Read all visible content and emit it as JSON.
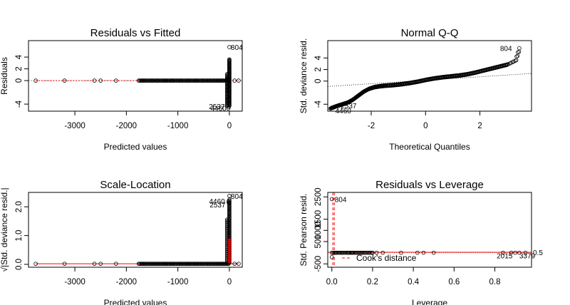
{
  "chart_data": [
    {
      "type": "scatter",
      "title": "Residuals vs Fitted",
      "xlabel": "Predicted values",
      "ylabel": "Residuals",
      "xlim": [
        -3900,
        250
      ],
      "ylim": [
        -5.2,
        6.8
      ],
      "xticks": [
        -3000,
        -2000,
        -1000,
        0
      ],
      "xtick_labels": [
        "-3000",
        "-2000",
        "-1000",
        "0"
      ],
      "yticks": [
        -4,
        0,
        2,
        4
      ],
      "ytick_labels": [
        "-4",
        "0",
        "2",
        "4"
      ],
      "ref_line": {
        "y": 0,
        "style": "dotted",
        "color": "#808080"
      },
      "smooth_color": "#ff0000",
      "sparse_points": [
        [
          -3760,
          0
        ],
        [
          -3200,
          0
        ],
        [
          -2620,
          0
        ],
        [
          -2500,
          0
        ],
        [
          -2200,
          0
        ],
        [
          -1700,
          0
        ],
        [
          -1650,
          0
        ],
        [
          -1500,
          0
        ],
        [
          -1400,
          0
        ],
        [
          -1250,
          0
        ],
        [
          -1100,
          0
        ],
        [
          -950,
          0
        ],
        [
          -800,
          0
        ],
        [
          -650,
          0
        ],
        [
          -520,
          0
        ],
        [
          -400,
          0
        ],
        [
          -300,
          0
        ],
        [
          -200,
          0
        ],
        [
          -120,
          0
        ],
        [
          100,
          0
        ],
        [
          180,
          0
        ]
      ],
      "outliers": [
        [
          0,
          5.7,
          "804"
        ],
        [
          -10,
          -4.5,
          "2537"
        ],
        [
          -20,
          -4.75,
          "4460"
        ]
      ]
    },
    {
      "type": "scatter",
      "title": "Normal Q-Q",
      "xlabel": "Theoretical Quantiles",
      "ylabel": "Std. deviance resid.",
      "xlim": [
        -3.6,
        3.9
      ],
      "ylim": [
        -5.2,
        7.0
      ],
      "xticks": [
        -2,
        0,
        2
      ],
      "xtick_labels": [
        "-2",
        "0",
        "2"
      ],
      "yticks": [
        -4,
        0,
        2,
        4
      ],
      "ytick_labels": [
        "-4",
        "0",
        "2",
        "4"
      ],
      "ref_line": {
        "intercept": 0.15,
        "slope": 0.3,
        "style": "dotted"
      },
      "quantile_curve": [
        [
          -3.5,
          -4.75
        ],
        [
          -3.3,
          -4.4
        ],
        [
          -3.1,
          -4.1
        ],
        [
          -2.9,
          -3.8
        ],
        [
          -2.7,
          -3.3
        ],
        [
          -2.5,
          -2.6
        ],
        [
          -2.3,
          -1.9
        ],
        [
          -2.1,
          -1.4
        ],
        [
          -1.9,
          -1.1
        ],
        [
          -1.7,
          -0.95
        ],
        [
          -1.5,
          -0.85
        ],
        [
          -1.2,
          -0.75
        ],
        [
          -0.9,
          -0.6
        ],
        [
          -0.6,
          -0.4
        ],
        [
          -0.3,
          -0.15
        ],
        [
          0,
          0.15
        ],
        [
          0.3,
          0.4
        ],
        [
          0.6,
          0.6
        ],
        [
          0.9,
          0.75
        ],
        [
          1.2,
          0.9
        ],
        [
          1.5,
          1.1
        ],
        [
          1.8,
          1.4
        ],
        [
          2.1,
          1.75
        ],
        [
          2.4,
          2.1
        ],
        [
          2.7,
          2.45
        ],
        [
          3.0,
          2.8
        ],
        [
          3.3,
          3.5
        ],
        [
          3.45,
          5.7
        ]
      ],
      "outliers": [
        [
          3.45,
          5.7,
          "804"
        ],
        [
          -3.2,
          -4.2,
          "2537"
        ],
        [
          -3.4,
          -4.6,
          "4460"
        ]
      ]
    },
    {
      "type": "scatter",
      "title": "Scale-Location",
      "xlabel": "Predicted values",
      "ylabel": "√|Std. deviance resid.|",
      "xlim": [
        -3900,
        250
      ],
      "ylim": [
        -0.1,
        2.5
      ],
      "xticks": [
        -3000,
        -2000,
        -1000,
        0
      ],
      "xtick_labels": [
        "-3000",
        "-2000",
        "-1000",
        "0"
      ],
      "yticks": [
        0.0,
        1.0,
        2.0
      ],
      "ytick_labels": [
        "0.0",
        "1.0",
        "2.0"
      ],
      "smooth_color": "#ff0000",
      "sparse_points": [
        [
          -3760,
          0.02
        ],
        [
          -3200,
          0.02
        ],
        [
          -2620,
          0.02
        ],
        [
          -2500,
          0.02
        ],
        [
          -2200,
          0.02
        ],
        [
          -1700,
          0.02
        ],
        [
          -1650,
          0.02
        ],
        [
          -1500,
          0.02
        ],
        [
          -1400,
          0.02
        ],
        [
          -1250,
          0.02
        ],
        [
          -1100,
          0.02
        ],
        [
          -950,
          0.02
        ],
        [
          -800,
          0.02
        ],
        [
          -650,
          0.02
        ],
        [
          -520,
          0.02
        ],
        [
          -400,
          0.02
        ],
        [
          -300,
          0.02
        ],
        [
          -200,
          0.02
        ],
        [
          -120,
          0.02
        ],
        [
          100,
          0.02
        ],
        [
          180,
          0.02
        ]
      ],
      "outliers": [
        [
          0,
          2.38,
          "804"
        ],
        [
          -10,
          2.13,
          "2537"
        ],
        [
          -20,
          2.18,
          "4460"
        ]
      ]
    },
    {
      "type": "scatter",
      "title": "Residuals vs Leverage",
      "xlabel": "Leverage",
      "ylabel": "Std. Pearson resid.",
      "xlim": [
        -0.02,
        0.98
      ],
      "ylim": [
        -650,
        2700
      ],
      "xticks": [
        0.0,
        0.2,
        0.4,
        0.6,
        0.8
      ],
      "xtick_labels": [
        "0.0",
        "0.2",
        "0.4",
        "0.6",
        "0.8"
      ],
      "yticks": [
        -500,
        500,
        1000,
        1500,
        2500
      ],
      "ytick_labels": [
        "-500",
        "500",
        "1000",
        "1500",
        "2500"
      ],
      "cooks_label": "0.5",
      "legend": {
        "label": "Cook's distance",
        "position": "bottom-left"
      },
      "sparse_points": [
        [
          0.02,
          0
        ],
        [
          0.05,
          0
        ],
        [
          0.08,
          0
        ],
        [
          0.1,
          0
        ],
        [
          0.12,
          0
        ],
        [
          0.15,
          0
        ],
        [
          0.2,
          0
        ],
        [
          0.22,
          0
        ],
        [
          0.25,
          0
        ],
        [
          0.34,
          0
        ],
        [
          0.42,
          0
        ],
        [
          0.45,
          0
        ],
        [
          0.5,
          0
        ],
        [
          0.84,
          0
        ],
        [
          0.88,
          0
        ],
        [
          0.9,
          0
        ],
        [
          0.92,
          0
        ],
        [
          0.95,
          0
        ]
      ],
      "outliers": [
        [
          0.0,
          2400,
          "804"
        ],
        [
          0.9,
          0,
          "2015"
        ],
        [
          0.92,
          0,
          "3379"
        ]
      ]
    }
  ]
}
